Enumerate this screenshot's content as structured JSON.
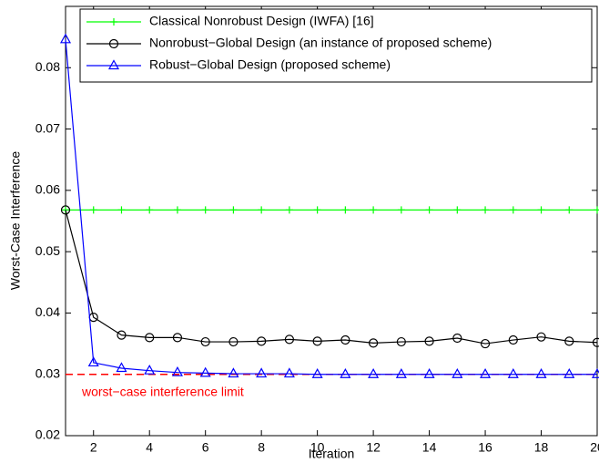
{
  "chart_data": {
    "type": "line",
    "xlabel": "Iteration",
    "ylabel": "Worst-Case Interference",
    "x": [
      1,
      2,
      3,
      4,
      5,
      6,
      7,
      8,
      9,
      10,
      11,
      12,
      13,
      14,
      15,
      16,
      17,
      18,
      19,
      20
    ],
    "xlim": [
      1,
      20
    ],
    "xticks": [
      2,
      4,
      6,
      8,
      10,
      12,
      14,
      16,
      18,
      20
    ],
    "ylim": [
      0.02,
      0.09
    ],
    "yticks": [
      0.02,
      0.03,
      0.04,
      0.05,
      0.06,
      0.07,
      0.08
    ],
    "grid": false,
    "legend": "top",
    "series": [
      {
        "name": "Classical Nonrobust Design (IWFA) [16]",
        "color": "#00ff00",
        "marker": "plus",
        "values": [
          0.0568,
          0.0568,
          0.0568,
          0.0568,
          0.0568,
          0.0568,
          0.0568,
          0.0568,
          0.0568,
          0.0568,
          0.0568,
          0.0568,
          0.0568,
          0.0568,
          0.0568,
          0.0568,
          0.0568,
          0.0568,
          0.0568,
          0.0568
        ]
      },
      {
        "name": "Nonrobust−Global Design (an instance of proposed scheme)",
        "color": "#000000",
        "marker": "circle",
        "values": [
          0.0568,
          0.0393,
          0.0364,
          0.036,
          0.036,
          0.0353,
          0.0353,
          0.0354,
          0.0357,
          0.0354,
          0.0356,
          0.0351,
          0.0353,
          0.0354,
          0.0359,
          0.035,
          0.0356,
          0.0361,
          0.0354,
          0.0352
        ]
      },
      {
        "name": "Robust−Global Design (proposed scheme)",
        "color": "#0000ff",
        "marker": "triangle",
        "values": [
          0.0846,
          0.0319,
          0.031,
          0.0306,
          0.0303,
          0.0302,
          0.0301,
          0.0301,
          0.0301,
          0.03,
          0.03,
          0.03,
          0.03,
          0.03,
          0.03,
          0.03,
          0.03,
          0.03,
          0.03,
          0.03
        ]
      }
    ],
    "limit": {
      "value": 0.03,
      "label": "worst−case interference limit",
      "color": "#ff0000"
    }
  }
}
